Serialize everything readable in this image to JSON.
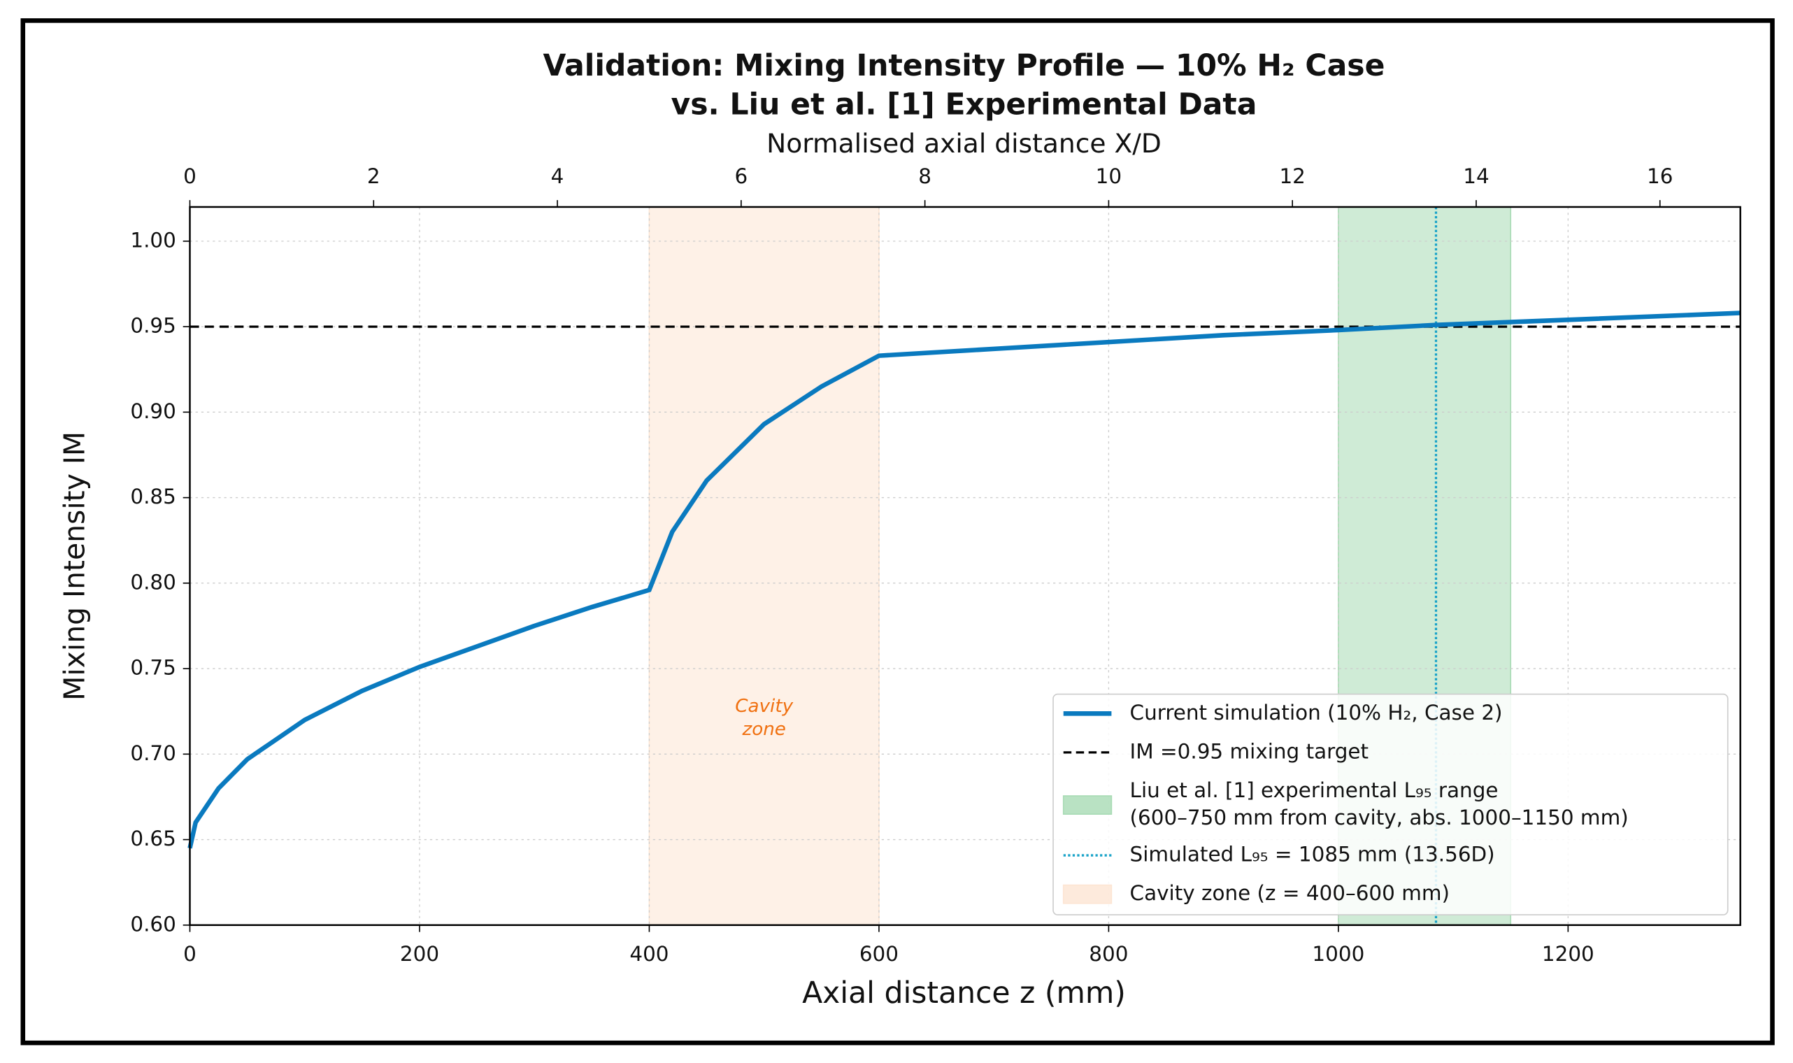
{
  "chart_data": {
    "type": "line",
    "title": [
      "Validation: Mixing Intensity Profile — 10% H₂ Case",
      "vs. Liu et al. [1] Experimental Data"
    ],
    "x_label": "Axial distance z (mm)",
    "y_label": "Mixing Intensity IM",
    "x2_label": "Normalised axial distance X/D",
    "xlim": [
      0,
      1350
    ],
    "xticks": [
      0,
      200,
      400,
      600,
      800,
      1000,
      1200
    ],
    "x2lim": [
      0,
      16.875
    ],
    "x2ticks": [
      0,
      2,
      4,
      6,
      8,
      10,
      12,
      14,
      16
    ],
    "ylim": [
      0.6,
      1.02
    ],
    "yticks": [
      {
        "value": 0.6,
        "label": "0.60"
      },
      {
        "value": 0.65,
        "label": "0.65"
      },
      {
        "value": 0.7,
        "label": "0.70"
      },
      {
        "value": 0.75,
        "label": "0.75"
      },
      {
        "value": 0.8,
        "label": "0.80"
      },
      {
        "value": 0.85,
        "label": "0.85"
      },
      {
        "value": 0.9,
        "label": "0.90"
      },
      {
        "value": 0.95,
        "label": "0.95"
      },
      {
        "value": 1.0,
        "label": "1.00"
      }
    ],
    "grid": true,
    "legend": "lower right",
    "series": [
      {
        "name": [
          "Current simulation (10% H₂, Case 2)"
        ],
        "color": "#0a7abf",
        "x": [
          0,
          5,
          25,
          50,
          100,
          150,
          200,
          250,
          300,
          350,
          400,
          420,
          450,
          500,
          550,
          600,
          700,
          800,
          900,
          1000,
          1085,
          1200,
          1350
        ],
        "values": [
          0.645,
          0.66,
          0.68,
          0.697,
          0.72,
          0.737,
          0.751,
          0.763,
          0.775,
          0.786,
          0.796,
          0.83,
          0.86,
          0.893,
          0.915,
          0.933,
          0.937,
          0.941,
          0.945,
          0.948,
          0.951,
          0.954,
          0.958
        ]
      }
    ],
    "hline": {
      "name": [
        "IM =0.95 mixing target"
      ],
      "value": 0.95,
      "color": "#000000"
    },
    "spans": [
      {
        "name": [
          "Liu et al. [1] experimental L₉₅ range",
          "(600–750 mm from cavity, abs. 1000–1150 mm)"
        ],
        "range": [
          1000,
          1150
        ],
        "color": "#a8dbb4"
      },
      {
        "name": [
          "Simulated L₉₅ = 1085 mm (13.56D)"
        ],
        "value": 1085,
        "color": "#17a2c8"
      },
      {
        "name": [
          "Cavity zone (z = 400–600 mm)"
        ],
        "range": [
          400,
          600
        ],
        "color": "#fde5d3"
      }
    ],
    "annotation": {
      "text": [
        "Cavity",
        "zone"
      ],
      "x": 500,
      "y": 0.725,
      "color": "#f07010"
    }
  }
}
